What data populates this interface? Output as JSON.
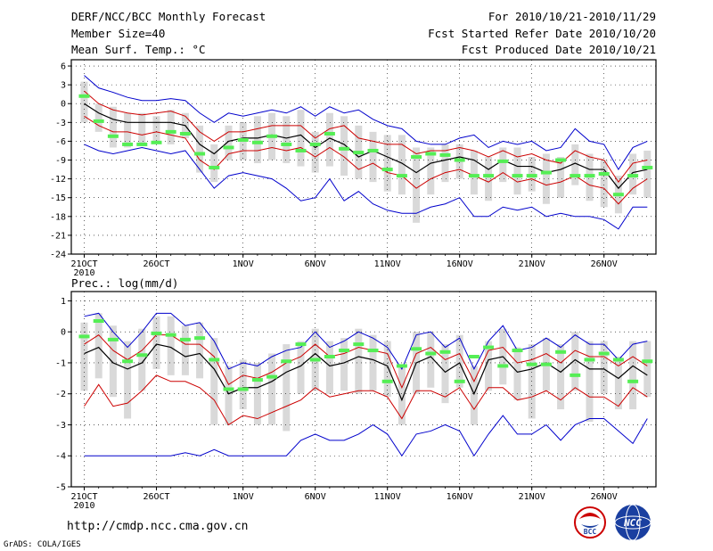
{
  "header": {
    "title": "DERF/NCC/BCC Monthly Forecast",
    "member_size": "Member Size=40",
    "variable_1": "Mean Surf. Temp.: °C",
    "period": "For 2010/10/21-2010/11/29",
    "start_date": "Fcst Started Refer Date 2010/10/20",
    "produced_date": "Fcst Produced Date 2010/10/21"
  },
  "footer": {
    "url": "http://cmdp.ncc.cma.gov.cn",
    "credit": "GrADS: COLA/IGES",
    "logo_bcc": "BCC",
    "logo_ncc": "NCC"
  },
  "chart_data": [
    {
      "type": "line",
      "title": "Mean Surf. Temp.: °C",
      "ylabel": "°C",
      "ylim": [
        -24,
        7
      ],
      "yticks": [
        6,
        3,
        0,
        -3,
        -6,
        -9,
        -12,
        -15,
        -18,
        -21,
        -24
      ],
      "xticks": [
        {
          "day": 1,
          "label": "21OCT",
          "sub": "2010"
        },
        {
          "day": 6,
          "label": "26OCT"
        },
        {
          "day": 12,
          "label": "1NOV"
        },
        {
          "day": 17,
          "label": "6NOV"
        },
        {
          "day": 22,
          "label": "11NOV"
        },
        {
          "day": 27,
          "label": "16NOV"
        },
        {
          "day": 32,
          "label": "21NOV"
        },
        {
          "day": 37,
          "label": "26NOV"
        }
      ],
      "days": [
        1,
        2,
        3,
        4,
        5,
        6,
        7,
        8,
        9,
        10,
        11,
        12,
        13,
        14,
        15,
        16,
        17,
        18,
        19,
        20,
        21,
        22,
        23,
        24,
        25,
        26,
        27,
        28,
        29,
        30,
        31,
        32,
        33,
        34,
        35,
        36,
        37,
        38,
        39,
        40
      ],
      "series": [
        {
          "name": "max",
          "color": "#0000cc",
          "values": [
            4.5,
            2.5,
            1.8,
            1.0,
            0.5,
            0.5,
            0.8,
            0.5,
            -1.5,
            -3.0,
            -1.5,
            -2.0,
            -1.5,
            -1.0,
            -1.5,
            -0.5,
            -2.0,
            -0.5,
            -1.5,
            -1.0,
            -2.5,
            -3.5,
            -4.0,
            -6.0,
            -6.5,
            -6.5,
            -5.5,
            -5.0,
            -7.0,
            -6.0,
            -6.5,
            -6.0,
            -7.5,
            -7.0,
            -4.0,
            -6.0,
            -6.5,
            -10.5,
            -7.0,
            -6.0
          ]
        },
        {
          "name": "p_upper",
          "color": "#cc0000",
          "values": [
            2.0,
            0.0,
            -1.0,
            -1.5,
            -1.8,
            -1.5,
            -1.2,
            -2.0,
            -4.5,
            -6.0,
            -4.5,
            -4.5,
            -4.0,
            -3.5,
            -3.5,
            -3.5,
            -5.5,
            -4.0,
            -3.5,
            -5.5,
            -6.0,
            -6.5,
            -6.5,
            -8.0,
            -7.5,
            -7.5,
            -7.0,
            -7.5,
            -8.5,
            -7.5,
            -8.5,
            -8.0,
            -9.0,
            -9.5,
            -7.5,
            -8.5,
            -9.0,
            -12.5,
            -9.5,
            -9.0
          ]
        },
        {
          "name": "mean",
          "color": "#000000",
          "values": [
            0.0,
            -1.5,
            -2.5,
            -3.0,
            -3.0,
            -3.0,
            -3.0,
            -3.5,
            -6.5,
            -8.0,
            -6.0,
            -5.5,
            -5.5,
            -5.0,
            -5.5,
            -5.0,
            -7.0,
            -5.5,
            -6.5,
            -8.5,
            -7.5,
            -8.5,
            -9.5,
            -11.0,
            -9.5,
            -9.0,
            -8.5,
            -9.0,
            -10.5,
            -9.0,
            -10.0,
            -10.0,
            -11.0,
            -10.5,
            -9.5,
            -10.5,
            -10.5,
            -13.5,
            -11.0,
            -10.5
          ]
        },
        {
          "name": "p_lower",
          "color": "#cc0000",
          "values": [
            -2.0,
            -3.5,
            -4.5,
            -4.5,
            -5.0,
            -4.5,
            -5.0,
            -5.5,
            -9.0,
            -10.5,
            -8.0,
            -7.5,
            -7.5,
            -7.0,
            -7.5,
            -7.0,
            -8.5,
            -7.0,
            -8.5,
            -10.5,
            -9.5,
            -11.0,
            -11.5,
            -13.5,
            -12.0,
            -11.0,
            -10.5,
            -11.5,
            -12.5,
            -11.0,
            -12.5,
            -12.0,
            -13.0,
            -12.5,
            -11.5,
            -13.0,
            -13.5,
            -16.0,
            -13.5,
            -12.0
          ]
        },
        {
          "name": "min",
          "color": "#0000cc",
          "values": [
            -6.5,
            -7.5,
            -8.0,
            -7.5,
            -7.0,
            -7.5,
            -8.0,
            -7.5,
            -10.5,
            -13.5,
            -11.5,
            -11.0,
            -11.5,
            -12.0,
            -13.5,
            -15.5,
            -15.0,
            -12.0,
            -15.5,
            -14.0,
            -16.0,
            -17.0,
            -17.5,
            -17.5,
            -16.5,
            -16.0,
            -15.0,
            -18.0,
            -18.0,
            -16.5,
            -17.0,
            -16.5,
            -18.0,
            -17.5,
            -18.0,
            -18.0,
            -18.5,
            -20.0,
            -16.5,
            -16.5
          ]
        }
      ],
      "box_top": [
        3.5,
        0.0,
        -0.5,
        -1.5,
        -1.5,
        -2.0,
        -1.0,
        -1.5,
        -3.5,
        -6.5,
        -3.5,
        -3.0,
        -2.0,
        -1.5,
        -2.0,
        -1.0,
        -4.5,
        -1.5,
        -2.0,
        -3.5,
        -4.5,
        -5.0,
        -5.0,
        -7.0,
        -7.0,
        -6.5,
        -6.5,
        -7.5,
        -8.5,
        -7.0,
        -7.0,
        -8.5,
        -8.0,
        -8.5,
        -6.5,
        -8.0,
        -9.0,
        -11.5,
        -8.0,
        -7.5
      ],
      "box_bottom": [
        -3.0,
        -4.5,
        -7.0,
        -7.0,
        -6.5,
        -6.0,
        -6.5,
        -5.5,
        -11.0,
        -12.5,
        -9.0,
        -9.0,
        -9.5,
        -9.0,
        -9.5,
        -10.0,
        -11.0,
        -10.0,
        -11.5,
        -12.0,
        -12.5,
        -14.0,
        -14.5,
        -19.0,
        -14.5,
        -12.5,
        -12.0,
        -14.5,
        -15.5,
        -12.5,
        -14.5,
        -14.0,
        -16.0,
        -15.0,
        -13.0,
        -15.5,
        -16.5,
        -17.5,
        -14.5,
        -15.0
      ],
      "ensemble_marker": [
        1.2,
        -2.8,
        -5.2,
        -6.5,
        -6.5,
        -6.2,
        -4.5,
        -4.8,
        -8.0,
        -10.2,
        -7.0,
        -5.8,
        -6.2,
        -5.2,
        -6.5,
        -7.5,
        -6.5,
        -4.8,
        -7.2,
        -7.8,
        -7.5,
        -10.5,
        -11.5,
        -8.5,
        -8.0,
        -8.2,
        -9.0,
        -11.5,
        -11.5,
        -9.2,
        -11.5,
        -11.5,
        -11.0,
        -9.0,
        -11.5,
        -11.5,
        -11.2,
        -14.5,
        -11.5,
        -10.2
      ]
    },
    {
      "type": "line",
      "title": "Prec.: log(mm/d)",
      "ylabel": "log(mm/d)",
      "ylim": [
        -5,
        1.3
      ],
      "yticks": [
        1,
        0,
        -1,
        -2,
        -3,
        -4,
        -5
      ],
      "xticks": [
        {
          "day": 1,
          "label": "21OCT",
          "sub": "2010"
        },
        {
          "day": 6,
          "label": "26OCT"
        },
        {
          "day": 12,
          "label": "1NOV"
        },
        {
          "day": 17,
          "label": "6NOV"
        },
        {
          "day": 22,
          "label": "11NOV"
        },
        {
          "day": 27,
          "label": "16NOV"
        },
        {
          "day": 32,
          "label": "21NOV"
        },
        {
          "day": 37,
          "label": "26NOV"
        }
      ],
      "days": [
        1,
        2,
        3,
        4,
        5,
        6,
        7,
        8,
        9,
        10,
        11,
        12,
        13,
        14,
        15,
        16,
        17,
        18,
        19,
        20,
        21,
        22,
        23,
        24,
        25,
        26,
        27,
        28,
        29,
        30,
        31,
        32,
        33,
        34,
        35,
        36,
        37,
        38,
        39,
        40
      ],
      "series": [
        {
          "name": "max",
          "color": "#0000cc",
          "values": [
            0.5,
            0.6,
            0.0,
            -0.5,
            0.0,
            0.6,
            0.6,
            0.2,
            0.3,
            -0.3,
            -1.2,
            -1.0,
            -1.1,
            -0.8,
            -0.6,
            -0.5,
            0.0,
            -0.5,
            -0.3,
            0.0,
            -0.2,
            -0.5,
            -1.2,
            -0.1,
            0.0,
            -0.5,
            -0.2,
            -1.2,
            -0.3,
            0.2,
            -0.6,
            -0.5,
            -0.2,
            -0.5,
            -0.1,
            -0.4,
            -0.4,
            -0.9,
            -0.4,
            -0.3
          ]
        },
        {
          "name": "p_upper",
          "color": "#cc0000",
          "values": [
            -0.4,
            -0.1,
            -0.6,
            -0.9,
            -0.6,
            -0.1,
            -0.1,
            -0.4,
            -0.4,
            -0.8,
            -1.7,
            -1.4,
            -1.5,
            -1.3,
            -1.0,
            -0.8,
            -0.4,
            -0.8,
            -0.7,
            -0.5,
            -0.6,
            -0.7,
            -1.8,
            -0.7,
            -0.5,
            -0.9,
            -0.7,
            -1.6,
            -0.6,
            -0.5,
            -1.0,
            -0.9,
            -0.7,
            -1.0,
            -0.6,
            -0.8,
            -0.8,
            -1.1,
            -0.8,
            -1.1
          ]
        },
        {
          "name": "mean",
          "color": "#000000",
          "values": [
            -0.7,
            -0.5,
            -1.0,
            -1.2,
            -1.0,
            -0.4,
            -0.5,
            -0.8,
            -0.7,
            -1.2,
            -2.0,
            -1.8,
            -1.8,
            -1.6,
            -1.3,
            -1.1,
            -0.7,
            -1.1,
            -1.0,
            -0.8,
            -0.9,
            -1.1,
            -2.2,
            -1.0,
            -0.8,
            -1.3,
            -1.0,
            -2.0,
            -0.9,
            -0.8,
            -1.3,
            -1.2,
            -1.0,
            -1.3,
            -0.9,
            -1.2,
            -1.2,
            -1.5,
            -1.1,
            -1.4
          ]
        },
        {
          "name": "p_lower",
          "color": "#cc0000",
          "values": [
            -2.4,
            -1.7,
            -2.4,
            -2.3,
            -1.9,
            -1.4,
            -1.6,
            -1.6,
            -1.8,
            -2.2,
            -3.0,
            -2.7,
            -2.8,
            -2.6,
            -2.4,
            -2.2,
            -1.8,
            -2.1,
            -2.0,
            -1.9,
            -1.9,
            -2.1,
            -2.8,
            -1.9,
            -1.9,
            -2.1,
            -1.8,
            -2.5,
            -1.8,
            -1.8,
            -2.2,
            -2.1,
            -1.9,
            -2.2,
            -1.8,
            -2.1,
            -2.1,
            -2.4,
            -1.8,
            -2.1
          ]
        },
        {
          "name": "min",
          "color": "#0000cc",
          "values": [
            -4.0,
            -4.0,
            -4.0,
            -4.0,
            -4.0,
            -4.0,
            -4.0,
            -3.9,
            -4.0,
            -3.8,
            -4.0,
            -4.0,
            -4.0,
            -4.0,
            -4.0,
            -3.5,
            -3.3,
            -3.5,
            -3.5,
            -3.3,
            -3.0,
            -3.3,
            -4.0,
            -3.3,
            -3.2,
            -3.0,
            -3.2,
            -4.0,
            -3.3,
            -2.7,
            -3.3,
            -3.3,
            -3.0,
            -3.5,
            -3.0,
            -2.8,
            -2.8,
            -3.2,
            -3.6,
            -2.8
          ]
        },
        {
          "name": "obs_marker_blue",
          "color": "#0000cc",
          "values": []
        }
      ],
      "box_top": [
        0.3,
        0.6,
        0.2,
        -0.3,
        0.1,
        0.5,
        0.5,
        0.2,
        0.3,
        -0.2,
        -1.1,
        -0.9,
        -1.0,
        -0.7,
        -0.4,
        -0.3,
        0.1,
        -0.3,
        -0.2,
        0.1,
        -0.1,
        -0.3,
        -1.1,
        0.0,
        0.0,
        -0.4,
        -0.1,
        -1.1,
        -0.3,
        0.1,
        -0.5,
        -0.4,
        -0.2,
        -0.4,
        0.0,
        -0.3,
        -0.3,
        -0.8,
        -0.3,
        -0.3
      ],
      "box_bottom": [
        -1.9,
        -1.5,
        -2.1,
        -2.8,
        -1.9,
        -1.2,
        -1.4,
        -1.4,
        -1.5,
        -3.0,
        -3.0,
        -2.5,
        -3.0,
        -3.0,
        -3.2,
        -2.0,
        -1.9,
        -2.0,
        -1.9,
        -2.0,
        -1.9,
        -2.1,
        -3.0,
        -2.0,
        -1.8,
        -2.3,
        -1.8,
        -3.0,
        -1.9,
        -1.7,
        -2.2,
        -2.8,
        -1.9,
        -2.5,
        -1.9,
        -2.9,
        -2.0,
        -2.5,
        -2.5,
        -2.1
      ],
      "ensemble_marker": [
        -0.15,
        0.35,
        -0.25,
        -0.95,
        -0.75,
        -0.05,
        -0.1,
        -0.25,
        -0.2,
        -0.9,
        -1.85,
        -1.85,
        -1.55,
        -1.45,
        -0.95,
        -0.4,
        -0.9,
        -0.8,
        -0.6,
        -0.4,
        -0.6,
        -1.6,
        -1.1,
        -0.55,
        -0.7,
        -0.65,
        -1.6,
        -0.8,
        -0.5,
        -1.1,
        -0.6,
        -1.05,
        -1.05,
        -0.65,
        -1.4,
        -0.9,
        -0.7,
        -0.9,
        -1.6,
        -0.95
      ]
    }
  ]
}
